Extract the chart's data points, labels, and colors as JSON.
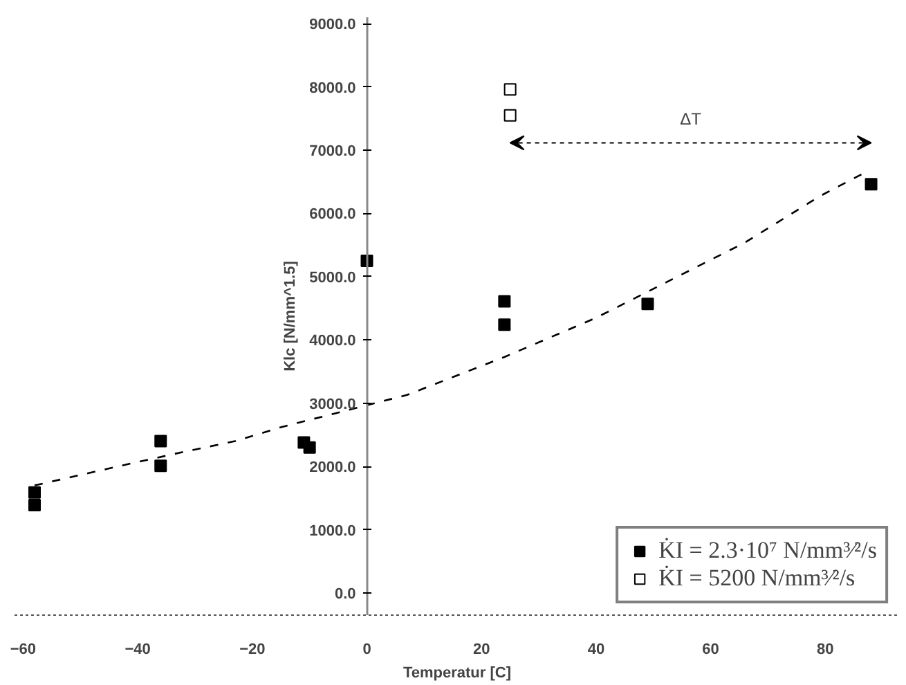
{
  "chart_data": {
    "type": "scatter",
    "xlabel": "Temperatur [C]",
    "ylabel": "Klc [N/mm^1.5]",
    "xlim": [
      -61.5,
      93
    ],
    "ylim": [
      -350,
      9100
    ],
    "xticks": [
      -60,
      -40,
      -20,
      0,
      20,
      40,
      60,
      80
    ],
    "yticks": [
      {
        "value": 0,
        "label": "0.0"
      },
      {
        "value": 1000,
        "label": "1000.0"
      },
      {
        "value": 2000,
        "label": "2000.0"
      },
      {
        "value": 3000,
        "label": "3000.0"
      },
      {
        "value": 4000,
        "label": "4000.0"
      },
      {
        "value": 5000,
        "label": "5000.0"
      },
      {
        "value": 6000,
        "label": "6000.0"
      },
      {
        "value": 7000,
        "label": "7000.0"
      },
      {
        "value": 8000,
        "label": "8000.0"
      },
      {
        "value": 9000,
        "label": "9000.0"
      }
    ],
    "grid": false,
    "legend": "bottom right",
    "marker": "square",
    "series": [
      {
        "name": "K̇I = 2.3·10⁷ N/mm³⁄²/s",
        "color": "#000000",
        "x": [
          -58,
          -58,
          -36,
          -36,
          -11,
          -10,
          0,
          24,
          24,
          49,
          88
        ],
        "values": [
          1590,
          1390,
          2400,
          2010,
          2380,
          2300,
          5250,
          4610,
          4240,
          4570,
          6460
        ]
      },
      {
        "name": "K̇I = 5200 N/mm³⁄²/s",
        "color": "#ffffff",
        "x": [
          25,
          25
        ],
        "values": [
          7960,
          7550
        ]
      },
      {
        "type": "line",
        "marker": "none",
        "color": "#000000",
        "line_style": "dashed",
        "x": [
          -58,
          -43,
          -32,
          -23,
          -15,
          7,
          24,
          40,
          52,
          66,
          79,
          87
        ],
        "values": [
          1700,
          2010,
          2230,
          2400,
          2620,
          3130,
          3730,
          4350,
          4900,
          5540,
          6270,
          6650
        ]
      }
    ],
    "annotations": [
      "ΔT"
    ]
  }
}
